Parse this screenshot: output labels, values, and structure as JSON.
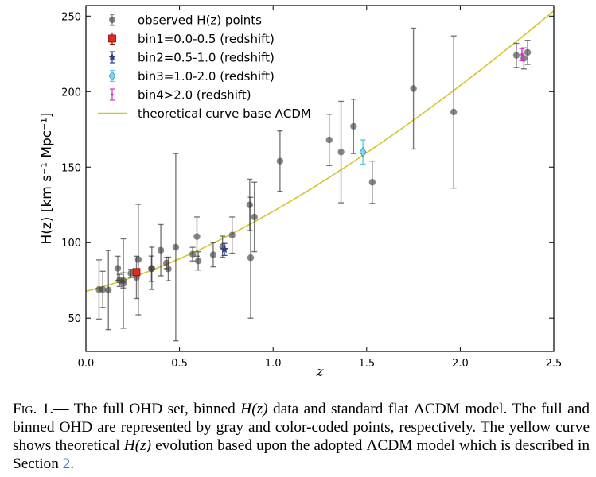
{
  "chart_data": {
    "type": "scatter",
    "xlabel": "z",
    "ylabel": "H(z) [km s⁻¹ Mpc⁻¹]",
    "xlim": [
      0.0,
      2.5
    ],
    "ylim": [
      28,
      257
    ],
    "xticks": [
      "0.0",
      "0.5",
      "1.0",
      "1.5",
      "2.0",
      "2.5"
    ],
    "xtick_values": [
      0.0,
      0.5,
      1.0,
      1.5,
      2.0,
      2.5
    ],
    "yticks": [
      "50",
      "100",
      "150",
      "200",
      "250"
    ],
    "ytick_values": [
      50,
      100,
      150,
      200,
      250
    ],
    "legend_placement": "top-left",
    "legend": [
      {
        "label": "observed H(z) points",
        "marker": "circle",
        "color": "#666666"
      },
      {
        "label": "bin1=0.0-0.5 (redshift)",
        "marker": "square",
        "color": "#e8281e"
      },
      {
        "label": "bin2=0.5-1.0 (redshift)",
        "marker": "star",
        "color": "#2b3d8f"
      },
      {
        "label": "bin3=1.0-2.0 (redshift)",
        "marker": "diamond",
        "color": "#5ec8e8"
      },
      {
        "label": "bin4>2.0 (redshift)",
        "marker": "point",
        "color": "#cc33cc"
      },
      {
        "label": "theoretical curve base ΛCDM",
        "marker": "line",
        "color": "#d4c52a"
      }
    ],
    "series": [
      {
        "name": "observed H(z) points",
        "points": [
          {
            "z": 0.07,
            "H": 69,
            "err": 19.6
          },
          {
            "z": 0.09,
            "H": 69,
            "err": 12
          },
          {
            "z": 0.12,
            "H": 68.6,
            "err": 26.2
          },
          {
            "z": 0.17,
            "H": 83,
            "err": 8
          },
          {
            "z": 0.179,
            "H": 75,
            "err": 4
          },
          {
            "z": 0.199,
            "H": 75,
            "err": 5
          },
          {
            "z": 0.2,
            "H": 72.9,
            "err": 29.6
          },
          {
            "z": 0.24,
            "H": 79.7,
            "err": 2.7
          },
          {
            "z": 0.27,
            "H": 77,
            "err": 14
          },
          {
            "z": 0.28,
            "H": 88.8,
            "err": 36.6
          },
          {
            "z": 0.35,
            "H": 82.7,
            "err": 8.4
          },
          {
            "z": 0.352,
            "H": 83,
            "err": 14
          },
          {
            "z": 0.4,
            "H": 95,
            "err": 17
          },
          {
            "z": 0.43,
            "H": 86.5,
            "err": 3.7
          },
          {
            "z": 0.44,
            "H": 82.6,
            "err": 7.8
          },
          {
            "z": 0.48,
            "H": 97,
            "err": 62
          },
          {
            "z": 0.57,
            "H": 92.4,
            "err": 4.5
          },
          {
            "z": 0.593,
            "H": 104,
            "err": 13
          },
          {
            "z": 0.6,
            "H": 87.9,
            "err": 6.1
          },
          {
            "z": 0.68,
            "H": 92,
            "err": 8
          },
          {
            "z": 0.73,
            "H": 97.3,
            "err": 7
          },
          {
            "z": 0.781,
            "H": 105,
            "err": 12
          },
          {
            "z": 0.875,
            "H": 125,
            "err": 17
          },
          {
            "z": 0.88,
            "H": 90,
            "err": 40
          },
          {
            "z": 0.9,
            "H": 117,
            "err": 23
          },
          {
            "z": 1.037,
            "H": 154,
            "err": 20
          },
          {
            "z": 1.3,
            "H": 168,
            "err": 17
          },
          {
            "z": 1.363,
            "H": 160,
            "err": 33.6
          },
          {
            "z": 1.43,
            "H": 177,
            "err": 18
          },
          {
            "z": 1.53,
            "H": 140,
            "err": 14
          },
          {
            "z": 1.75,
            "H": 202,
            "err": 40
          },
          {
            "z": 1.965,
            "H": 186.5,
            "err": 50.4
          },
          {
            "z": 2.3,
            "H": 224,
            "err": 8
          },
          {
            "z": 2.34,
            "H": 222,
            "err": 7
          },
          {
            "z": 2.36,
            "H": 226,
            "err": 8
          }
        ]
      },
      {
        "name": "bin1=0.0-0.5 (redshift)",
        "points": [
          {
            "z": 0.27,
            "H": 80.5,
            "err": 2
          }
        ]
      },
      {
        "name": "bin2=0.5-1.0 (redshift)",
        "points": [
          {
            "z": 0.74,
            "H": 95.5,
            "err": 4
          }
        ]
      },
      {
        "name": "bin3=1.0-2.0 (redshift)",
        "points": [
          {
            "z": 1.48,
            "H": 160,
            "err": 8
          }
        ]
      },
      {
        "name": "bin4>2.0 (redshift)",
        "points": [
          {
            "z": 2.33,
            "H": 224.5,
            "err": 4
          }
        ]
      }
    ],
    "curve": {
      "name": "theoretical curve base ΛCDM",
      "H0": 67.8,
      "Om": 0.31,
      "z_from": 0.0,
      "z_to": 2.5
    }
  },
  "caption": {
    "fig_label": "Fig. 1.",
    "dash": "—",
    "part1": " The full OHD set, binned ",
    "hz1": "H(z)",
    "part2": " data and standard flat ΛCDM model. The full and binned OHD are represented by gray and color-coded points, respectively. The yellow curve shows theoretical ",
    "hz2": "H(z)",
    "part3": " evolution based upon the adopted ΛCDM model which is described in Section ",
    "section_ref": "2",
    "end": "."
  }
}
